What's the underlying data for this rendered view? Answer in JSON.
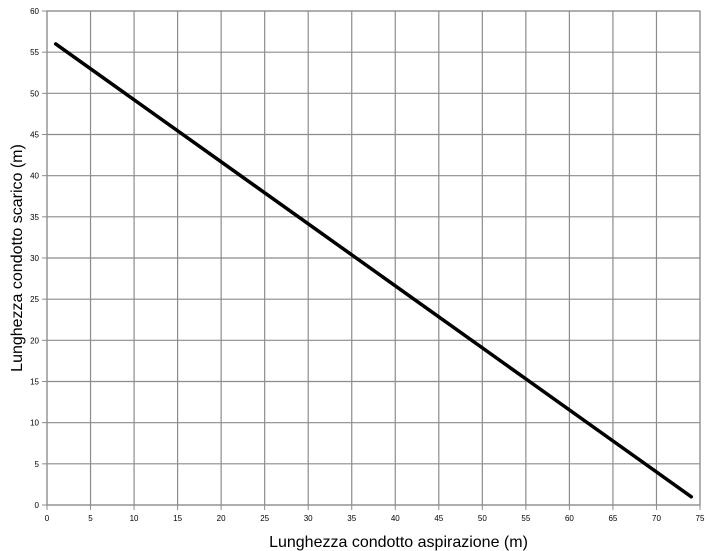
{
  "chart_data": {
    "type": "line",
    "title": "",
    "xlabel": "Lunghezza condotto aspirazione (m)",
    "ylabel": "Lunghezza condotto scarico (m)",
    "xlim": [
      0,
      75
    ],
    "ylim": [
      0,
      60
    ],
    "x_ticks": [
      0,
      5,
      10,
      15,
      20,
      25,
      30,
      35,
      40,
      45,
      50,
      55,
      60,
      65,
      70,
      75
    ],
    "y_ticks": [
      0,
      5,
      10,
      15,
      20,
      25,
      30,
      35,
      40,
      45,
      50,
      55,
      60
    ],
    "grid": true,
    "legend": "none",
    "series": [
      {
        "x": [
          1,
          74
        ],
        "y": [
          56,
          1
        ]
      }
    ]
  },
  "colors": {
    "line": "#000000",
    "grid": "#8c8c8c",
    "background": "#ffffff"
  }
}
